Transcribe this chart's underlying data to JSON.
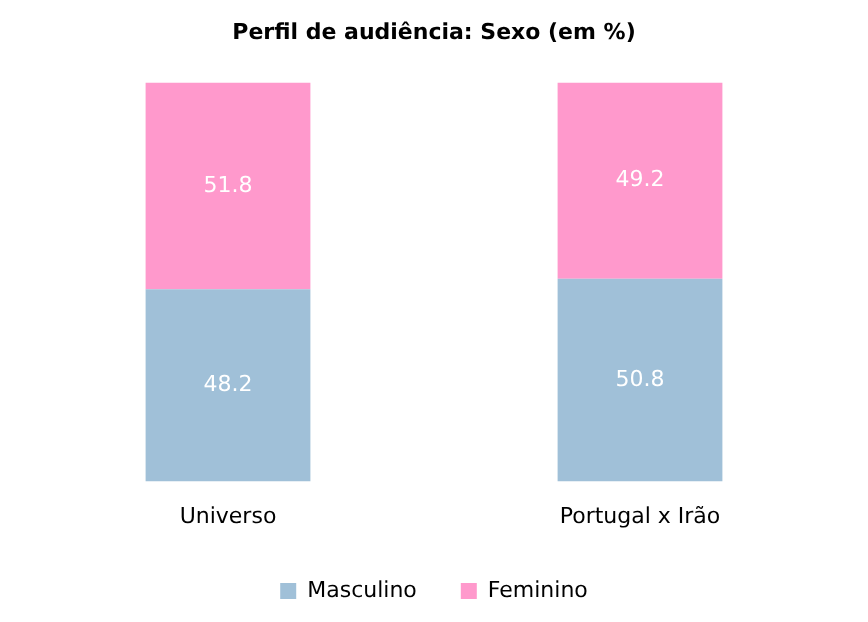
{
  "chart_data": {
    "type": "bar",
    "title": "Perfil de audiência: Sexo (em %)",
    "categories": [
      "Universo",
      "Portugal x Irão"
    ],
    "stacked": true,
    "ylim": [
      0,
      100
    ],
    "tick_labels": "x",
    "grid": false,
    "legend": "bottom",
    "data_labels": true,
    "series": [
      {
        "name": "Masculino",
        "color": "#a0c0d8",
        "values": [
          48.2,
          50.8
        ]
      },
      {
        "name": "Feminino",
        "color": "#ff99cc",
        "values": [
          51.8,
          49.2
        ]
      }
    ]
  }
}
